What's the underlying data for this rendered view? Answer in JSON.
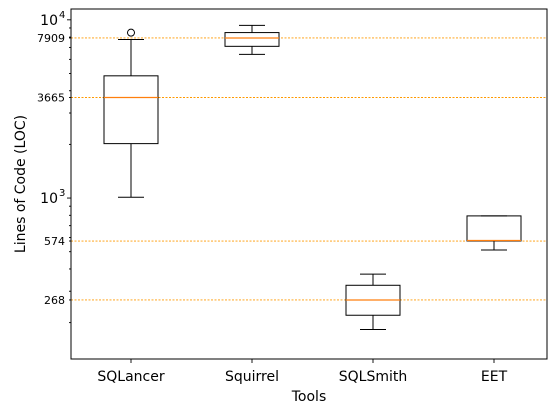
{
  "chart_data": {
    "type": "box",
    "xlabel": "Tools",
    "ylabel": "Lines of Code (LOC)",
    "yscale": "log",
    "ylim": [
      125,
      11500
    ],
    "ytick_major": [
      {
        "value": 1000,
        "base": "10",
        "exp": "3"
      },
      {
        "value": 10000,
        "base": "10",
        "exp": "4"
      }
    ],
    "ytick_labeled_minor": [
      {
        "value": 268,
        "label": "268"
      },
      {
        "value": 574,
        "label": "574"
      },
      {
        "value": 3665,
        "label": "3665"
      },
      {
        "value": 7909,
        "label": "7909"
      }
    ],
    "reference_lines": [
      7909,
      3665,
      574,
      268
    ],
    "reference_line_color": "#ff9900",
    "median_color": "#ff7f0e",
    "categories": [
      "SQLancer",
      "Squirrel",
      "SQLSmith",
      "EET"
    ],
    "boxes": [
      {
        "name": "SQLancer",
        "whisker_low": 1010,
        "q1": 2020,
        "median": 3665,
        "q3": 4850,
        "whisker_high": 7750,
        "outliers": [
          8470
        ]
      },
      {
        "name": "Squirrel",
        "whisker_low": 6400,
        "q1": 7100,
        "median": 7909,
        "q3": 8480,
        "whisker_high": 9300,
        "outliers": []
      },
      {
        "name": "SQLSmith",
        "whisker_low": 183,
        "q1": 220,
        "median": 268,
        "q3": 324,
        "whisker_high": 374,
        "outliers": []
      },
      {
        "name": "EET",
        "whisker_low": 511,
        "q1": 574,
        "median": 578,
        "q3": 794,
        "whisker_high": 794,
        "outliers": []
      }
    ]
  }
}
